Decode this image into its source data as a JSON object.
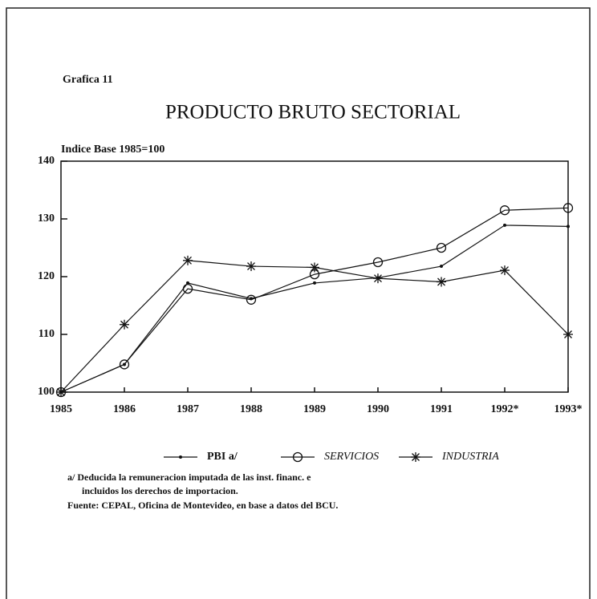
{
  "chart_data": {
    "type": "line",
    "label": "Grafica 11",
    "title": "PRODUCTO BRUTO SECTORIAL",
    "y_axis_label": "Indice Base 1985=100",
    "categories": [
      "1985",
      "1986",
      "1987",
      "1988",
      "1989",
      "1990",
      "1991",
      "1992*",
      "1993*"
    ],
    "series": [
      {
        "name": "PBI a/",
        "color": "#111111",
        "marker": "dot",
        "values": [
          100,
          104.8,
          118.9,
          116.2,
          118.9,
          119.8,
          121.8,
          128.9,
          128.7
        ]
      },
      {
        "name": "SERVICIOS",
        "color": "#111111",
        "marker": "circle",
        "values": [
          100,
          104.8,
          117.9,
          116.0,
          120.4,
          122.5,
          125.0,
          131.5,
          131.9
        ]
      },
      {
        "name": "INDUSTRIA",
        "color": "#111111",
        "marker": "star",
        "values": [
          100,
          111.7,
          122.8,
          121.8,
          121.6,
          119.7,
          119.1,
          121.1,
          110
        ]
      }
    ],
    "ylim": [
      100,
      140
    ],
    "yticks": [
      100,
      110,
      120,
      130,
      140
    ],
    "notes": [
      "a/ Deducida la remuneracion imputada de las inst. financ. e",
      "incluidos los derechos de importacion.",
      "Fuente: CEPAL, Oficina de Montevideo, en base a datos del BCU."
    ]
  }
}
